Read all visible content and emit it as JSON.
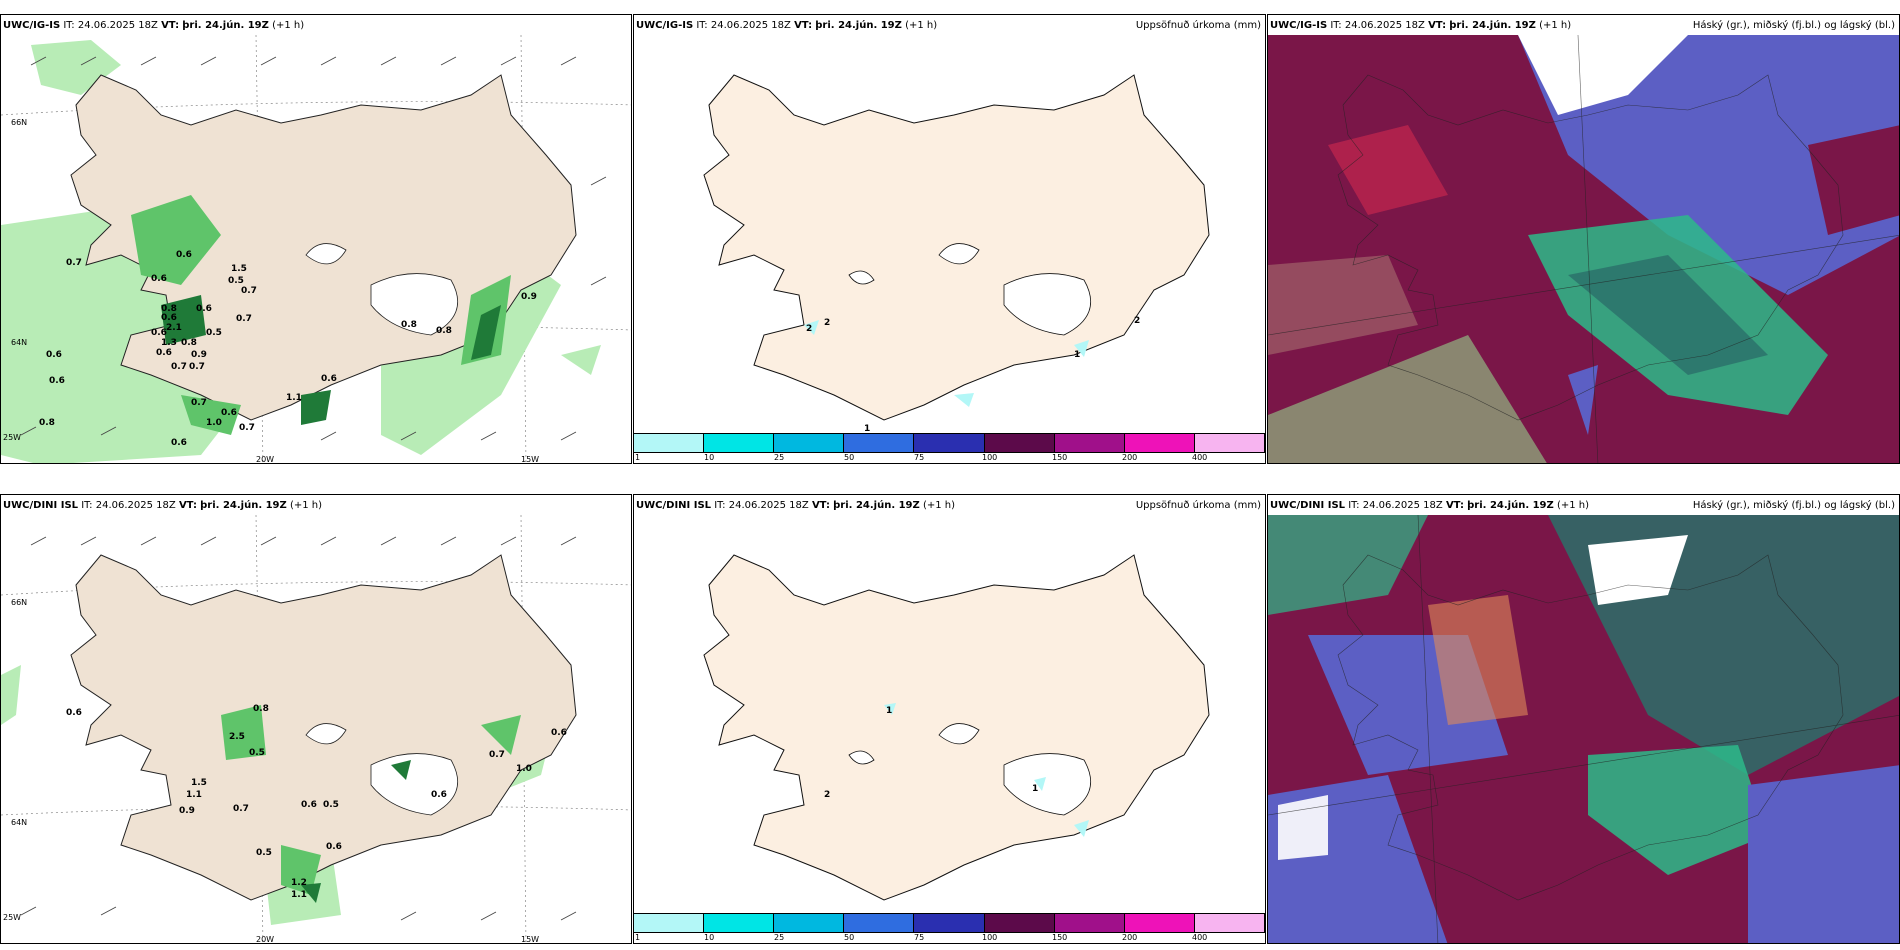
{
  "panels": [
    {
      "model": "UWC/IG-IS",
      "it": "IT: 24.06.2025 18Z",
      "vt_label": "VT:",
      "vt": "þri. 24.jún. 19Z",
      "lead": "(+1 h)",
      "right": ""
    },
    {
      "model": "UWC/IG-IS",
      "it": "IT: 24.06.2025 18Z",
      "vt_label": "VT:",
      "vt": "þri. 24.jún. 19Z",
      "lead": "(+1 h)",
      "right": "Uppsöfnuð úrkoma (mm)"
    },
    {
      "model": "UWC/IG-IS",
      "it": "IT: 24.06.2025 18Z",
      "vt_label": "VT:",
      "vt": "þri. 24.jún. 19Z",
      "lead": "(+1 h)",
      "right": "Háský (gr.), miðský (fj.bl.) og lágský (bl.)"
    },
    {
      "model": "UWC/DINI ISL",
      "it": "IT: 24.06.2025 18Z",
      "vt_label": "VT:",
      "vt": "þri. 24.jún. 19Z",
      "lead": "(+1 h)",
      "right": ""
    },
    {
      "model": "UWC/DINI ISL",
      "it": "IT: 24.06.2025 18Z",
      "vt_label": "VT:",
      "vt": "þri. 24.jún. 19Z",
      "lead": "(+1 h)",
      "right": "Uppsöfnuð úrkoma (mm)"
    },
    {
      "model": "UWC/DINI ISL",
      "it": "IT: 24.06.2025 18Z",
      "vt_label": "VT:",
      "vt": "þri. 24.jún. 19Z",
      "lead": "(+1 h)",
      "right": "Háský (gr.), miðský (fj.bl.) og lágský (bl.)"
    }
  ],
  "axis_labels": {
    "lat_66": "66N",
    "lat_64": "64N",
    "lon_25": "25W",
    "lon_20": "20W",
    "lon_15": "15W"
  },
  "legend": {
    "ticks": [
      "1",
      "10",
      "25",
      "50",
      "75",
      "100",
      "150",
      "200",
      "400"
    ],
    "colors": [
      "#b3f7f7",
      "#00e5e5",
      "#00b8e0",
      "#2f6de0",
      "#2a2fb0",
      "#5c0a4a",
      "#a0108a",
      "#ee12b8",
      "#f7b4f0"
    ]
  },
  "precip_top": [
    "0.7",
    "0.6",
    "1.5",
    "0.5",
    "0.7",
    "0.6",
    "0.8",
    "0.6",
    "2.1",
    "0.5",
    "0.7",
    "1.3",
    "0.8",
    "0.6",
    "0.9",
    "0.7",
    "0.7",
    "0.6",
    "0.7",
    "1.0",
    "0.6",
    "0.6",
    "0.7",
    "0.8",
    "0.6",
    "0.8",
    "1.1",
    "0.6",
    "0.9",
    "0.8",
    "0.6",
    "0.6"
  ],
  "precip_bottom": [
    "0.6",
    "0.8",
    "2.5",
    "0.5",
    "1.5",
    "1.1",
    "0.9",
    "0.7",
    "0.6",
    "0.5",
    "0.5",
    "0.6",
    "0.6",
    "1.2",
    "1.1",
    "0.7",
    "1.0",
    "0.6"
  ],
  "accum_top": [
    "2",
    "2",
    "1",
    "1",
    "2"
  ],
  "accum_bottom": [
    "2",
    "1",
    "1"
  ],
  "colors": {
    "land": "#efe2d3",
    "precip_light": "#b8ecb6",
    "precip_mid": "#5fc46a",
    "precip_dark": "#1f7a38",
    "snow": "#ffffff",
    "cloud_high": "#2dba8a",
    "cloud_mid": "#5c5fc4",
    "cloud_low": "#7a1648"
  }
}
